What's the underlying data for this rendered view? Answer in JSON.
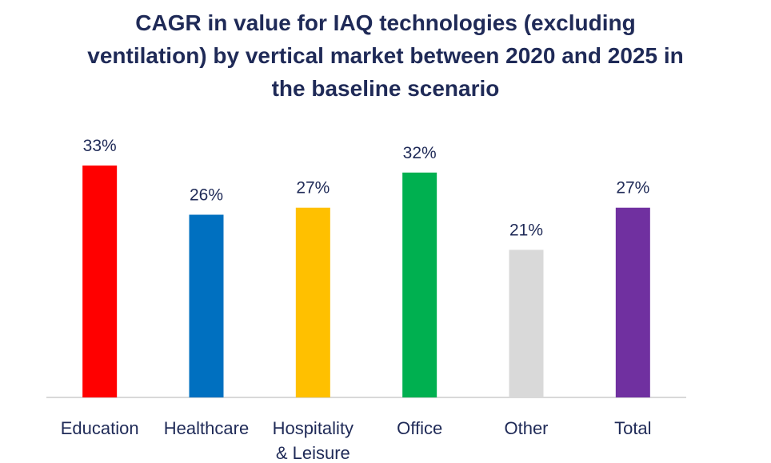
{
  "chart_data": {
    "type": "bar",
    "title_lines": [
      "CAGR in value for IAQ technologies (excluding",
      "ventilation) by vertical market between 2020 and 2025 in",
      "the baseline scenario"
    ],
    "title": "CAGR in value for IAQ technologies (excluding ventilation) by vertical market between 2020 and 2025 in the baseline scenario",
    "categories": [
      [
        "Education"
      ],
      [
        "Healthcare"
      ],
      [
        "Hospitality",
        "& Leisure"
      ],
      [
        "Office"
      ],
      [
        "Other"
      ],
      [
        "Total"
      ]
    ],
    "values": [
      33,
      26,
      27,
      32,
      21,
      27
    ],
    "value_labels": [
      "33%",
      "26%",
      "27%",
      "32%",
      "21%",
      "27%"
    ],
    "colors": [
      "#ff0000",
      "#0070c0",
      "#ffc000",
      "#00b050",
      "#d9d9d9",
      "#7030a0"
    ],
    "xlabel": "",
    "ylabel": "",
    "ylim": [
      0,
      33
    ],
    "grid": false,
    "legend": "none",
    "unit": "%"
  }
}
